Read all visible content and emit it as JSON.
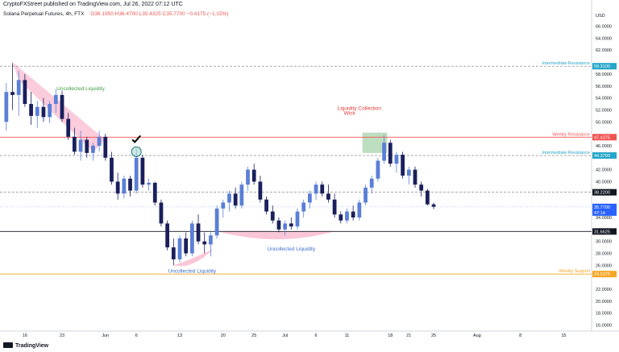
{
  "header": {
    "publisher_line": "CryptoFXStreet published on TradingView.com, Jul 26, 2022 07:12 UTC",
    "symbol_title": "Solana Perpetual Futures, 4h, FTX",
    "ohlc": "O36.1950 H36.4700 L35.4325 C35.7700 −0.4175 (−1.15%)"
  },
  "footer": {
    "brand": "TradingView"
  },
  "colors": {
    "candle_up": "#5b7fd6",
    "candle_down": "#1a1f5c",
    "resistance_red": "#ef5350",
    "intermediate_teal": "#26a6c9",
    "support_orange": "#f5a623",
    "collected_green": "#43a047",
    "liquidity_pink": "#f48fb1",
    "current_price_blue": "#2962ff"
  },
  "chart_data": {
    "type": "candlestick",
    "y_axis_label": "USD",
    "ylim": [
      15.0,
      68.5
    ],
    "y_ticks": [
      {
        "value": 66,
        "label": "66.0000"
      },
      {
        "value": 64,
        "label": "64.0000"
      },
      {
        "value": 62,
        "label": "62.0000"
      },
      {
        "value": 58,
        "label": "58.0000"
      },
      {
        "value": 56,
        "label": "56.0000"
      },
      {
        "value": 54,
        "label": "54.0000"
      },
      {
        "value": 52,
        "label": "52.0000"
      },
      {
        "value": 50,
        "label": "50.0000"
      },
      {
        "value": 46,
        "label": "46.0000"
      },
      {
        "value": 42,
        "label": "42.0000"
      },
      {
        "value": 40,
        "label": "40.0000"
      },
      {
        "value": 34,
        "label": "34.0000"
      },
      {
        "value": 30,
        "label": "30.0000"
      },
      {
        "value": 28,
        "label": "28.0000"
      },
      {
        "value": 26,
        "label": "26.0000"
      },
      {
        "value": 22,
        "label": "22.0000"
      },
      {
        "value": 20,
        "label": "20.0000"
      },
      {
        "value": 18,
        "label": "18.0000"
      },
      {
        "value": 16,
        "label": "16.0000"
      }
    ],
    "x_ticks": [
      {
        "label": "16",
        "index": 3
      },
      {
        "label": "23",
        "index": 9
      },
      {
        "label": "Jun",
        "index": 16
      },
      {
        "label": "6",
        "index": 21
      },
      {
        "label": "13",
        "index": 28
      },
      {
        "label": "20",
        "index": 35
      },
      {
        "label": "25",
        "index": 40
      },
      {
        "label": "Jul",
        "index": 45
      },
      {
        "label": "6",
        "index": 50
      },
      {
        "label": "11",
        "index": 55
      },
      {
        "label": "18",
        "index": 62
      },
      {
        "label": "21",
        "index": 65
      },
      {
        "label": "25",
        "index": 69
      },
      {
        "label": "Aug",
        "index": 76
      },
      {
        "label": "8",
        "index": 83
      },
      {
        "label": "15",
        "index": 90
      }
    ],
    "x_slots": 95,
    "candles": [
      [
        50.0,
        56.5,
        48.5,
        55.0
      ],
      [
        55.0,
        59.8,
        52.0,
        54.5
      ],
      [
        54.5,
        58.5,
        51.0,
        57.0
      ],
      [
        57.0,
        58.0,
        52.5,
        53.0
      ],
      [
        53.0,
        55.0,
        49.5,
        51.0
      ],
      [
        51.0,
        53.5,
        49.0,
        52.5
      ],
      [
        52.5,
        54.0,
        50.0,
        50.8
      ],
      [
        50.8,
        53.5,
        49.8,
        53.0
      ],
      [
        53.0,
        55.5,
        51.5,
        54.5
      ],
      [
        54.5,
        55.2,
        50.0,
        50.5
      ],
      [
        50.5,
        51.5,
        47.0,
        47.5
      ],
      [
        47.5,
        49.0,
        44.5,
        45.0
      ],
      [
        45.0,
        48.5,
        43.5,
        47.0
      ],
      [
        47.0,
        47.5,
        44.0,
        44.8
      ],
      [
        44.8,
        46.5,
        43.5,
        46.0
      ],
      [
        46.0,
        48.5,
        45.0,
        47.5
      ],
      [
        47.5,
        48.0,
        43.5,
        44.0
      ],
      [
        44.0,
        45.0,
        39.5,
        40.0
      ],
      [
        40.0,
        41.5,
        37.0,
        38.0
      ],
      [
        38.0,
        41.0,
        37.2,
        40.5
      ],
      [
        40.5,
        41.0,
        37.5,
        38.5
      ],
      [
        38.5,
        45.5,
        38.0,
        44.0
      ],
      [
        44.0,
        44.5,
        39.0,
        39.5
      ],
      [
        39.5,
        40.5,
        38.5,
        39.8
      ],
      [
        39.8,
        40.0,
        36.0,
        36.5
      ],
      [
        36.5,
        37.0,
        32.5,
        33.0
      ],
      [
        33.0,
        33.5,
        28.5,
        29.0
      ],
      [
        29.0,
        30.5,
        26.0,
        27.0
      ],
      [
        27.0,
        31.0,
        26.5,
        30.5
      ],
      [
        30.5,
        31.5,
        27.5,
        28.0
      ],
      [
        28.0,
        33.5,
        27.5,
        33.0
      ],
      [
        33.0,
        34.5,
        29.5,
        30.0
      ],
      [
        30.0,
        31.5,
        28.0,
        29.5
      ],
      [
        29.5,
        31.5,
        27.5,
        31.0
      ],
      [
        31.0,
        36.0,
        30.5,
        35.5
      ],
      [
        35.5,
        37.0,
        34.0,
        36.5
      ],
      [
        36.5,
        38.5,
        35.0,
        38.0
      ],
      [
        38.0,
        39.0,
        35.5,
        36.0
      ],
      [
        36.0,
        40.0,
        35.5,
        39.5
      ],
      [
        39.5,
        42.5,
        38.5,
        42.0
      ],
      [
        42.0,
        43.0,
        39.5,
        40.0
      ],
      [
        40.0,
        41.0,
        36.5,
        37.0
      ],
      [
        37.0,
        37.5,
        34.5,
        35.0
      ],
      [
        35.0,
        36.0,
        33.0,
        33.5
      ],
      [
        33.5,
        34.0,
        31.5,
        32.0
      ],
      [
        32.0,
        33.5,
        31.0,
        33.0
      ],
      [
        33.0,
        34.0,
        32.0,
        32.5
      ],
      [
        32.5,
        35.5,
        32.0,
        35.0
      ],
      [
        35.0,
        37.0,
        34.0,
        36.5
      ],
      [
        36.5,
        38.5,
        35.5,
        38.0
      ],
      [
        38.0,
        40.0,
        37.0,
        39.5
      ],
      [
        39.5,
        40.0,
        37.5,
        38.0
      ],
      [
        38.0,
        39.5,
        36.5,
        37.0
      ],
      [
        37.0,
        38.0,
        34.0,
        34.5
      ],
      [
        34.5,
        35.0,
        33.0,
        33.5
      ],
      [
        33.5,
        35.5,
        33.0,
        35.0
      ],
      [
        35.0,
        36.0,
        33.5,
        34.0
      ],
      [
        34.0,
        37.0,
        33.5,
        36.5
      ],
      [
        36.5,
        39.5,
        36.0,
        39.0
      ],
      [
        39.0,
        41.0,
        38.0,
        40.5
      ],
      [
        40.5,
        44.0,
        40.0,
        43.5
      ],
      [
        43.5,
        47.8,
        43.0,
        46.5
      ],
      [
        46.5,
        47.0,
        42.5,
        43.0
      ],
      [
        43.0,
        45.0,
        41.5,
        44.5
      ],
      [
        44.5,
        45.0,
        40.5,
        41.0
      ],
      [
        41.0,
        42.5,
        39.5,
        42.0
      ],
      [
        42.0,
        42.5,
        39.0,
        39.5
      ],
      [
        39.5,
        40.0,
        37.5,
        38.5
      ],
      [
        38.5,
        38.8,
        36.0,
        36.2
      ],
      [
        36.2,
        36.5,
        35.4,
        35.8
      ]
    ],
    "levels": [
      {
        "name": "Intermediate Resistance",
        "value": 59.31,
        "label": "59.3100",
        "color": "#26a6c9",
        "line_color": "#777777",
        "style": "dashed"
      },
      {
        "name": "Weekly Resistance",
        "value": 47.4375,
        "label": "47.4375",
        "color": "#ef5350",
        "line_color": "#ef5350",
        "style": "solid"
      },
      {
        "name": "Intermediate Resistance",
        "value": 44.37,
        "label": "44.3700",
        "color": "#26a6c9",
        "line_color": "#777777",
        "style": "dashed"
      },
      {
        "name": "",
        "value": 38.22,
        "label": "38.2200",
        "color": "#131722",
        "line_color": "#777777",
        "style": "dashed"
      },
      {
        "name": "",
        "value": 31.6625,
        "label": "31.6625",
        "color": "#131722",
        "line_color": "#131722",
        "style": "solid"
      },
      {
        "name": "Weekly Support",
        "value": 24.5375,
        "label": "24.5375",
        "color": "#f5a623",
        "line_color": "#f5a623",
        "style": "solid"
      }
    ],
    "current_price": {
      "value": 35.77,
      "label": "35.7700",
      "countdown": "47:14"
    },
    "annotations": [
      {
        "text": "Uncollected Liquidity",
        "color": "#43a047"
      },
      {
        "text": "Uncollected Liquidity",
        "color": "#3f6fd1"
      },
      {
        "text": "Uncollected Liquidity",
        "color": "#3f6fd1"
      },
      {
        "text": "Liquidity Collection",
        "color": "#e53935"
      },
      {
        "text": "Wick",
        "color": "#e53935"
      }
    ]
  }
}
